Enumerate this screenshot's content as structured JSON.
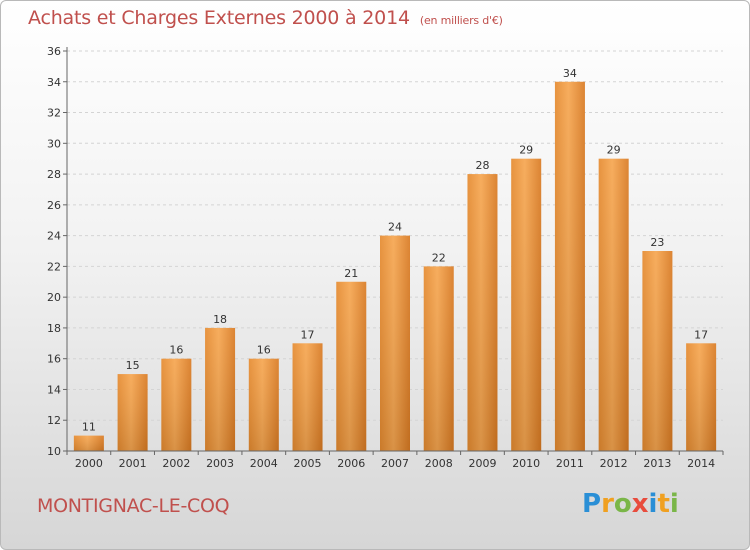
{
  "header": {
    "title": "Achats et Charges Externes 2000 à 2014",
    "unit": "(en milliers d'€)"
  },
  "footer": {
    "commune": "MONTIGNAC-LE-COQ",
    "brand_letters": [
      {
        "ch": "P",
        "color": "#2a8fd6"
      },
      {
        "ch": "r",
        "color": "#f0a020"
      },
      {
        "ch": "o",
        "color": "#7ab648"
      },
      {
        "ch": "x",
        "color": "#e84c3d"
      },
      {
        "ch": "i",
        "color": "#2a8fd6"
      },
      {
        "ch": "t",
        "color": "#f0a020"
      },
      {
        "ch": "i",
        "color": "#7ab648"
      }
    ]
  },
  "chart_data": {
    "type": "bar",
    "title": "Achats et Charges Externes 2000 à 2014",
    "subtitle": "(en milliers d'€)",
    "categories": [
      "2000",
      "2001",
      "2002",
      "2003",
      "2004",
      "2005",
      "2006",
      "2007",
      "2008",
      "2009",
      "2010",
      "2011",
      "2012",
      "2013",
      "2014"
    ],
    "values": [
      11,
      15,
      16,
      18,
      16,
      17,
      21,
      24,
      22,
      28,
      29,
      34,
      29,
      23,
      17
    ],
    "ylim": [
      10,
      36
    ],
    "yticks": [
      10,
      12,
      14,
      16,
      18,
      20,
      22,
      24,
      26,
      28,
      30,
      32,
      34,
      36
    ],
    "grid": true,
    "bar_color": "#f0a04b",
    "bar_color_dark": "#d9822b"
  }
}
